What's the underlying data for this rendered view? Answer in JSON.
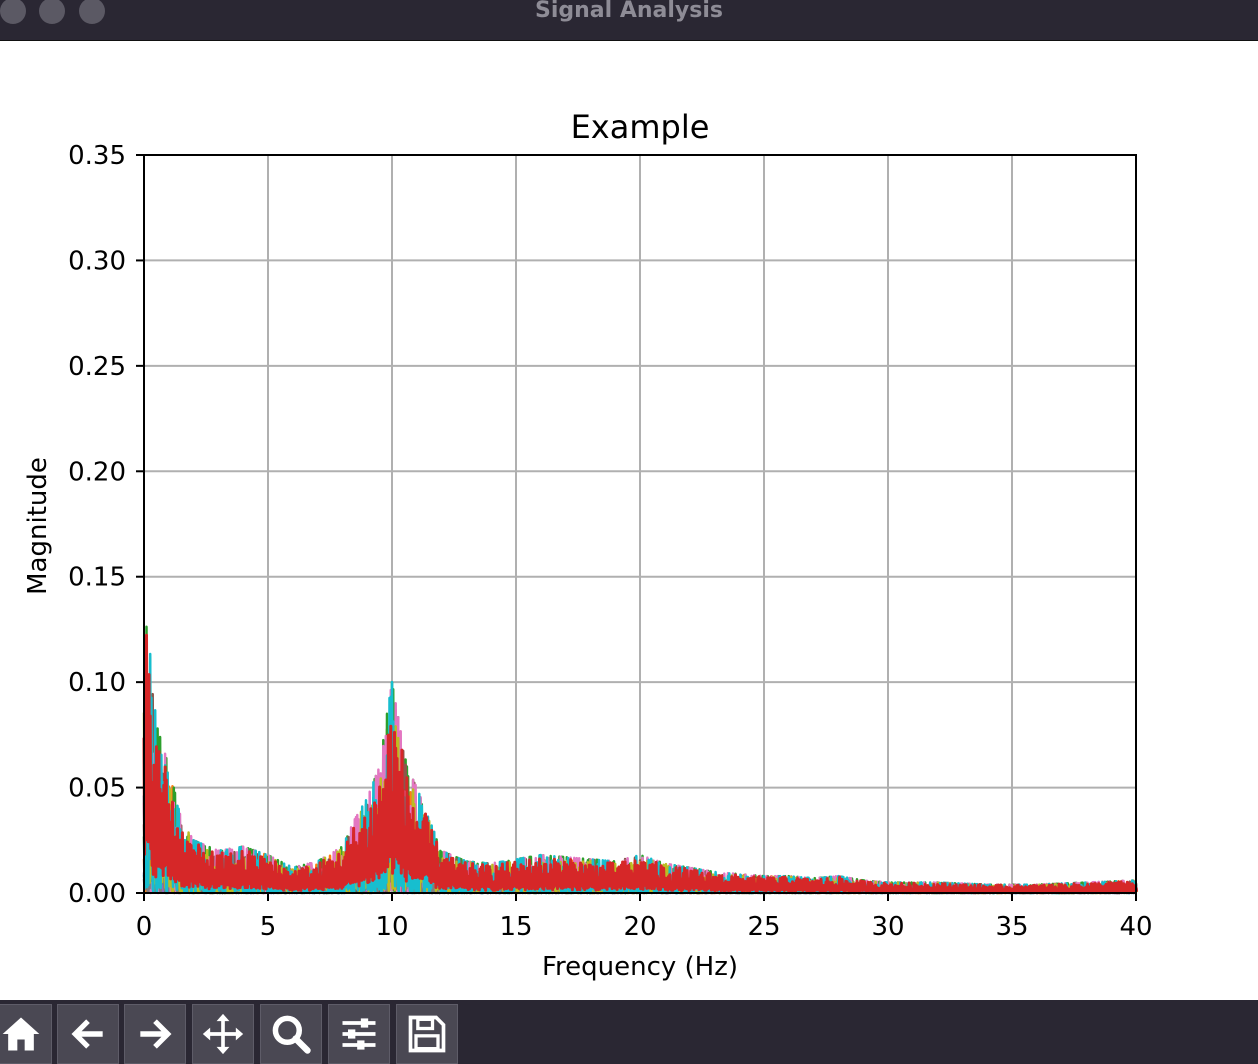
{
  "window": {
    "title": "Signal Analysis"
  },
  "toolbar": {
    "buttons": [
      {
        "name": "home",
        "icon": "home-icon"
      },
      {
        "name": "back",
        "icon": "arrow-left-icon"
      },
      {
        "name": "forward",
        "icon": "arrow-right-icon"
      },
      {
        "name": "pan",
        "icon": "move-icon"
      },
      {
        "name": "zoom",
        "icon": "magnifier-icon"
      },
      {
        "name": "configure",
        "icon": "sliders-icon"
      },
      {
        "name": "save",
        "icon": "floppy-disk-icon"
      }
    ]
  },
  "chart_data": {
    "type": "line",
    "title": "Example",
    "xlabel": "Frequency (Hz)",
    "ylabel": "Magnitude",
    "xlim": [
      0,
      40
    ],
    "ylim": [
      0,
      0.35
    ],
    "xticks": [
      "0",
      "5",
      "10",
      "15",
      "20",
      "25",
      "30",
      "35",
      "40"
    ],
    "yticks": [
      "0.00",
      "0.05",
      "0.10",
      "0.15",
      "0.20",
      "0.25",
      "0.30",
      "0.35"
    ],
    "grid": true,
    "series_colors": [
      "#1f77b4",
      "#ff7f0e",
      "#2ca02c",
      "#9467bd",
      "#8c564b",
      "#e377c2",
      "#7f7f7f",
      "#bcbd22",
      "#17becf",
      "#d62728"
    ],
    "envelope": {
      "x": [
        0,
        0.1,
        0.2,
        0.5,
        1.0,
        1.5,
        2,
        3,
        4,
        5,
        6,
        7,
        8,
        8.5,
        9,
        9.5,
        9.8,
        10,
        10.3,
        10.6,
        11,
        11.5,
        12,
        13,
        14,
        15,
        16,
        17,
        18,
        19,
        20,
        21,
        22,
        23,
        24,
        25,
        26,
        27,
        28,
        29,
        30,
        32,
        34,
        36,
        38,
        40
      ],
      "y": [
        0.13,
        0.133,
        0.12,
        0.08,
        0.06,
        0.035,
        0.025,
        0.02,
        0.022,
        0.018,
        0.012,
        0.015,
        0.022,
        0.035,
        0.045,
        0.06,
        0.085,
        0.1,
        0.08,
        0.06,
        0.05,
        0.035,
        0.02,
        0.015,
        0.014,
        0.016,
        0.018,
        0.017,
        0.016,
        0.015,
        0.018,
        0.014,
        0.012,
        0.01,
        0.009,
        0.008,
        0.008,
        0.007,
        0.008,
        0.006,
        0.005,
        0.005,
        0.004,
        0.004,
        0.005,
        0.006
      ]
    }
  }
}
